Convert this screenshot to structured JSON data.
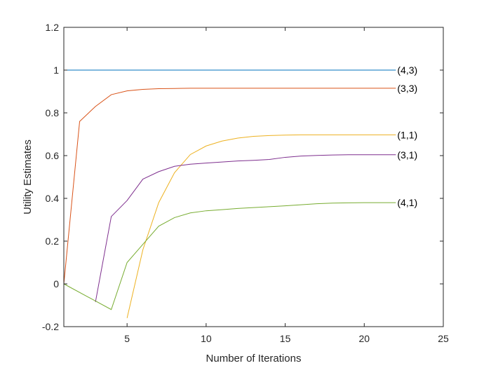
{
  "chart_data": {
    "type": "line",
    "title": "",
    "xlabel": "Number of Iterations",
    "ylabel": "Utility Estimates",
    "xlim": [
      1,
      25
    ],
    "ylim": [
      -0.2,
      1.2
    ],
    "xticks": [
      5,
      10,
      15,
      20,
      25
    ],
    "xtick_labels": [
      "5",
      "10",
      "15",
      "20",
      "25"
    ],
    "yticks": [
      -0.2,
      0,
      0.2,
      0.4,
      0.6,
      0.8,
      1,
      1.2
    ],
    "ytick_labels": [
      "-0.2",
      "0",
      "0.2",
      "0.4",
      "0.6",
      "0.8",
      "1",
      "1.2"
    ],
    "grid": false,
    "series": [
      {
        "name": "(4,3)",
        "color": "#0072bd",
        "x": [
          1,
          22
        ],
        "values": [
          1.0,
          1.0
        ]
      },
      {
        "name": "(3,3)",
        "color": "#d95319",
        "x": [
          1,
          2,
          3,
          4,
          5,
          6,
          7,
          8,
          9,
          10,
          11,
          12,
          13,
          14,
          15,
          16,
          17,
          18,
          19,
          20,
          21,
          22
        ],
        "values": [
          0.0,
          0.76,
          0.83,
          0.885,
          0.903,
          0.91,
          0.913,
          0.914,
          0.915,
          0.915,
          0.915,
          0.915,
          0.915,
          0.915,
          0.915,
          0.915,
          0.915,
          0.915,
          0.915,
          0.915,
          0.915,
          0.915
        ]
      },
      {
        "name": "(1,1)",
        "color": "#edb120",
        "x": [
          5,
          6,
          7,
          8,
          9,
          10,
          11,
          12,
          13,
          14,
          15,
          16,
          17,
          18,
          19,
          20,
          21,
          22
        ],
        "values": [
          -0.16,
          0.16,
          0.38,
          0.52,
          0.605,
          0.645,
          0.668,
          0.682,
          0.69,
          0.694,
          0.696,
          0.697,
          0.697,
          0.697,
          0.697,
          0.697,
          0.697,
          0.697
        ]
      },
      {
        "name": "(3,1)",
        "color": "#7e2f8e",
        "x": [
          3,
          4,
          5,
          6,
          7,
          8,
          9,
          10,
          11,
          12,
          13,
          14,
          15,
          16,
          17,
          18,
          19,
          20,
          21,
          22
        ],
        "values": [
          -0.085,
          0.315,
          0.39,
          0.49,
          0.525,
          0.55,
          0.56,
          0.565,
          0.57,
          0.575,
          0.578,
          0.582,
          0.592,
          0.598,
          0.601,
          0.603,
          0.604,
          0.604,
          0.604,
          0.604
        ]
      },
      {
        "name": "(4,1)",
        "color": "#77ac30",
        "x": [
          1,
          4,
          5,
          6,
          7,
          8,
          9,
          10,
          11,
          12,
          13,
          14,
          15,
          16,
          17,
          18,
          19,
          20,
          21,
          22
        ],
        "values": [
          0.0,
          -0.12,
          0.1,
          0.185,
          0.27,
          0.31,
          0.332,
          0.342,
          0.347,
          0.353,
          0.357,
          0.361,
          0.365,
          0.37,
          0.375,
          0.378,
          0.379,
          0.38,
          0.38,
          0.38
        ]
      }
    ]
  }
}
